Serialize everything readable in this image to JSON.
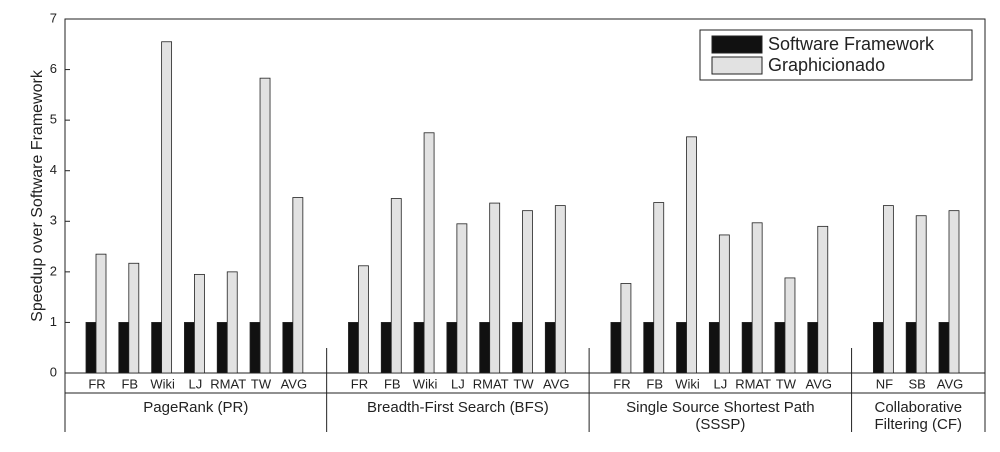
{
  "chart_data": {
    "type": "bar",
    "ylabel": "Speedup over Software Framework",
    "categories": [
      "FR",
      "FB",
      "Wiki",
      "LJ",
      "RMAT",
      "TW",
      "AVG",
      null,
      "FR",
      "FB",
      "Wiki",
      "LJ",
      "RMAT",
      "TW",
      "AVG",
      null,
      "FR",
      "FB",
      "Wiki",
      "LJ",
      "RMAT",
      "TW",
      "AVG",
      null,
      "NF",
      "SB",
      "AVG"
    ],
    "group_labels": [
      [
        "PageRank (PR)"
      ],
      [
        "Breadth-First Search (BFS)"
      ],
      [
        "Single Source Shortest Path",
        "(SSSP)"
      ],
      [
        "Collaborative",
        "Filtering (CF)"
      ]
    ],
    "series": [
      {
        "name": "Software Framework",
        "color": "#111111",
        "values": [
          1,
          1,
          1,
          1,
          1,
          1,
          1,
          null,
          1,
          1,
          1,
          1,
          1,
          1,
          1,
          null,
          1,
          1,
          1,
          1,
          1,
          1,
          1,
          null,
          1,
          1,
          1
        ]
      },
      {
        "name": "Graphicionado",
        "color": "#e2e2e2",
        "values": [
          2.35,
          2.17,
          6.55,
          1.95,
          2.0,
          5.83,
          3.47,
          null,
          2.12,
          3.45,
          4.75,
          2.95,
          3.36,
          3.21,
          3.31,
          null,
          1.77,
          3.37,
          4.67,
          2.73,
          2.97,
          1.88,
          2.9,
          null,
          3.31,
          3.11,
          3.21
        ]
      }
    ],
    "ylim": [
      0,
      7
    ],
    "yticks": [
      0,
      1,
      2,
      3,
      4,
      5,
      6,
      7
    ],
    "grid": false,
    "legend": "upper-right"
  }
}
